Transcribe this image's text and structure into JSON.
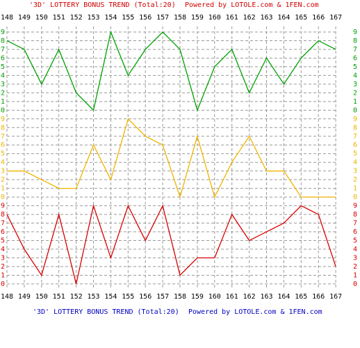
{
  "chart_data": {
    "type": "line",
    "title": "'3D' LOTTERY BONUS TREND (Total:20)",
    "subtitle": "Powered by LOTOLE.com & 1FEN.com",
    "categories": [
      "148",
      "149",
      "150",
      "151",
      "152",
      "153",
      "154",
      "155",
      "156",
      "157",
      "158",
      "159",
      "160",
      "161",
      "162",
      "163",
      "164",
      "165",
      "166",
      "167"
    ],
    "ylim": [
      0,
      9
    ],
    "yticks": [
      0,
      1,
      2,
      3,
      4,
      5,
      6,
      7,
      8,
      9
    ],
    "grid": true,
    "series": [
      {
        "color": "#00a000",
        "values": [
          8,
          7,
          3,
          7,
          2,
          0,
          9,
          4,
          7,
          9,
          7,
          0,
          5,
          7,
          2,
          6,
          3,
          6,
          8,
          7
        ]
      },
      {
        "color": "#f0b400",
        "values": [
          3,
          3,
          2,
          1,
          1,
          6,
          2,
          9,
          7,
          6,
          0,
          7,
          0,
          4,
          7,
          3,
          3,
          0,
          0,
          0
        ]
      },
      {
        "color": "#d80000",
        "values": [
          8,
          4,
          1,
          8,
          0,
          9,
          3,
          9,
          5,
          9,
          1,
          3,
          3,
          8,
          5,
          6,
          7,
          9,
          8,
          2
        ]
      }
    ]
  }
}
